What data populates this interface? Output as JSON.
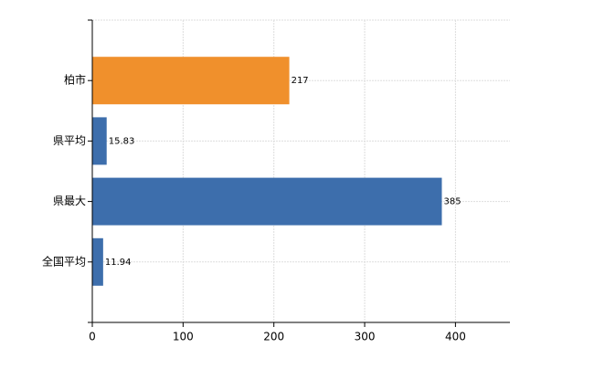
{
  "chart_data": {
    "type": "bar",
    "orientation": "horizontal",
    "categories": [
      "柏市",
      "県平均",
      "県最大",
      "全国平均"
    ],
    "values": [
      217,
      15.83,
      385,
      11.94
    ],
    "colors": [
      "#f0902c",
      "#3d6eac",
      "#3d6eac",
      "#3d6eac"
    ],
    "xlim": [
      0,
      460
    ],
    "xticks": [
      0,
      100,
      200,
      300,
      400
    ],
    "grid": true
  }
}
